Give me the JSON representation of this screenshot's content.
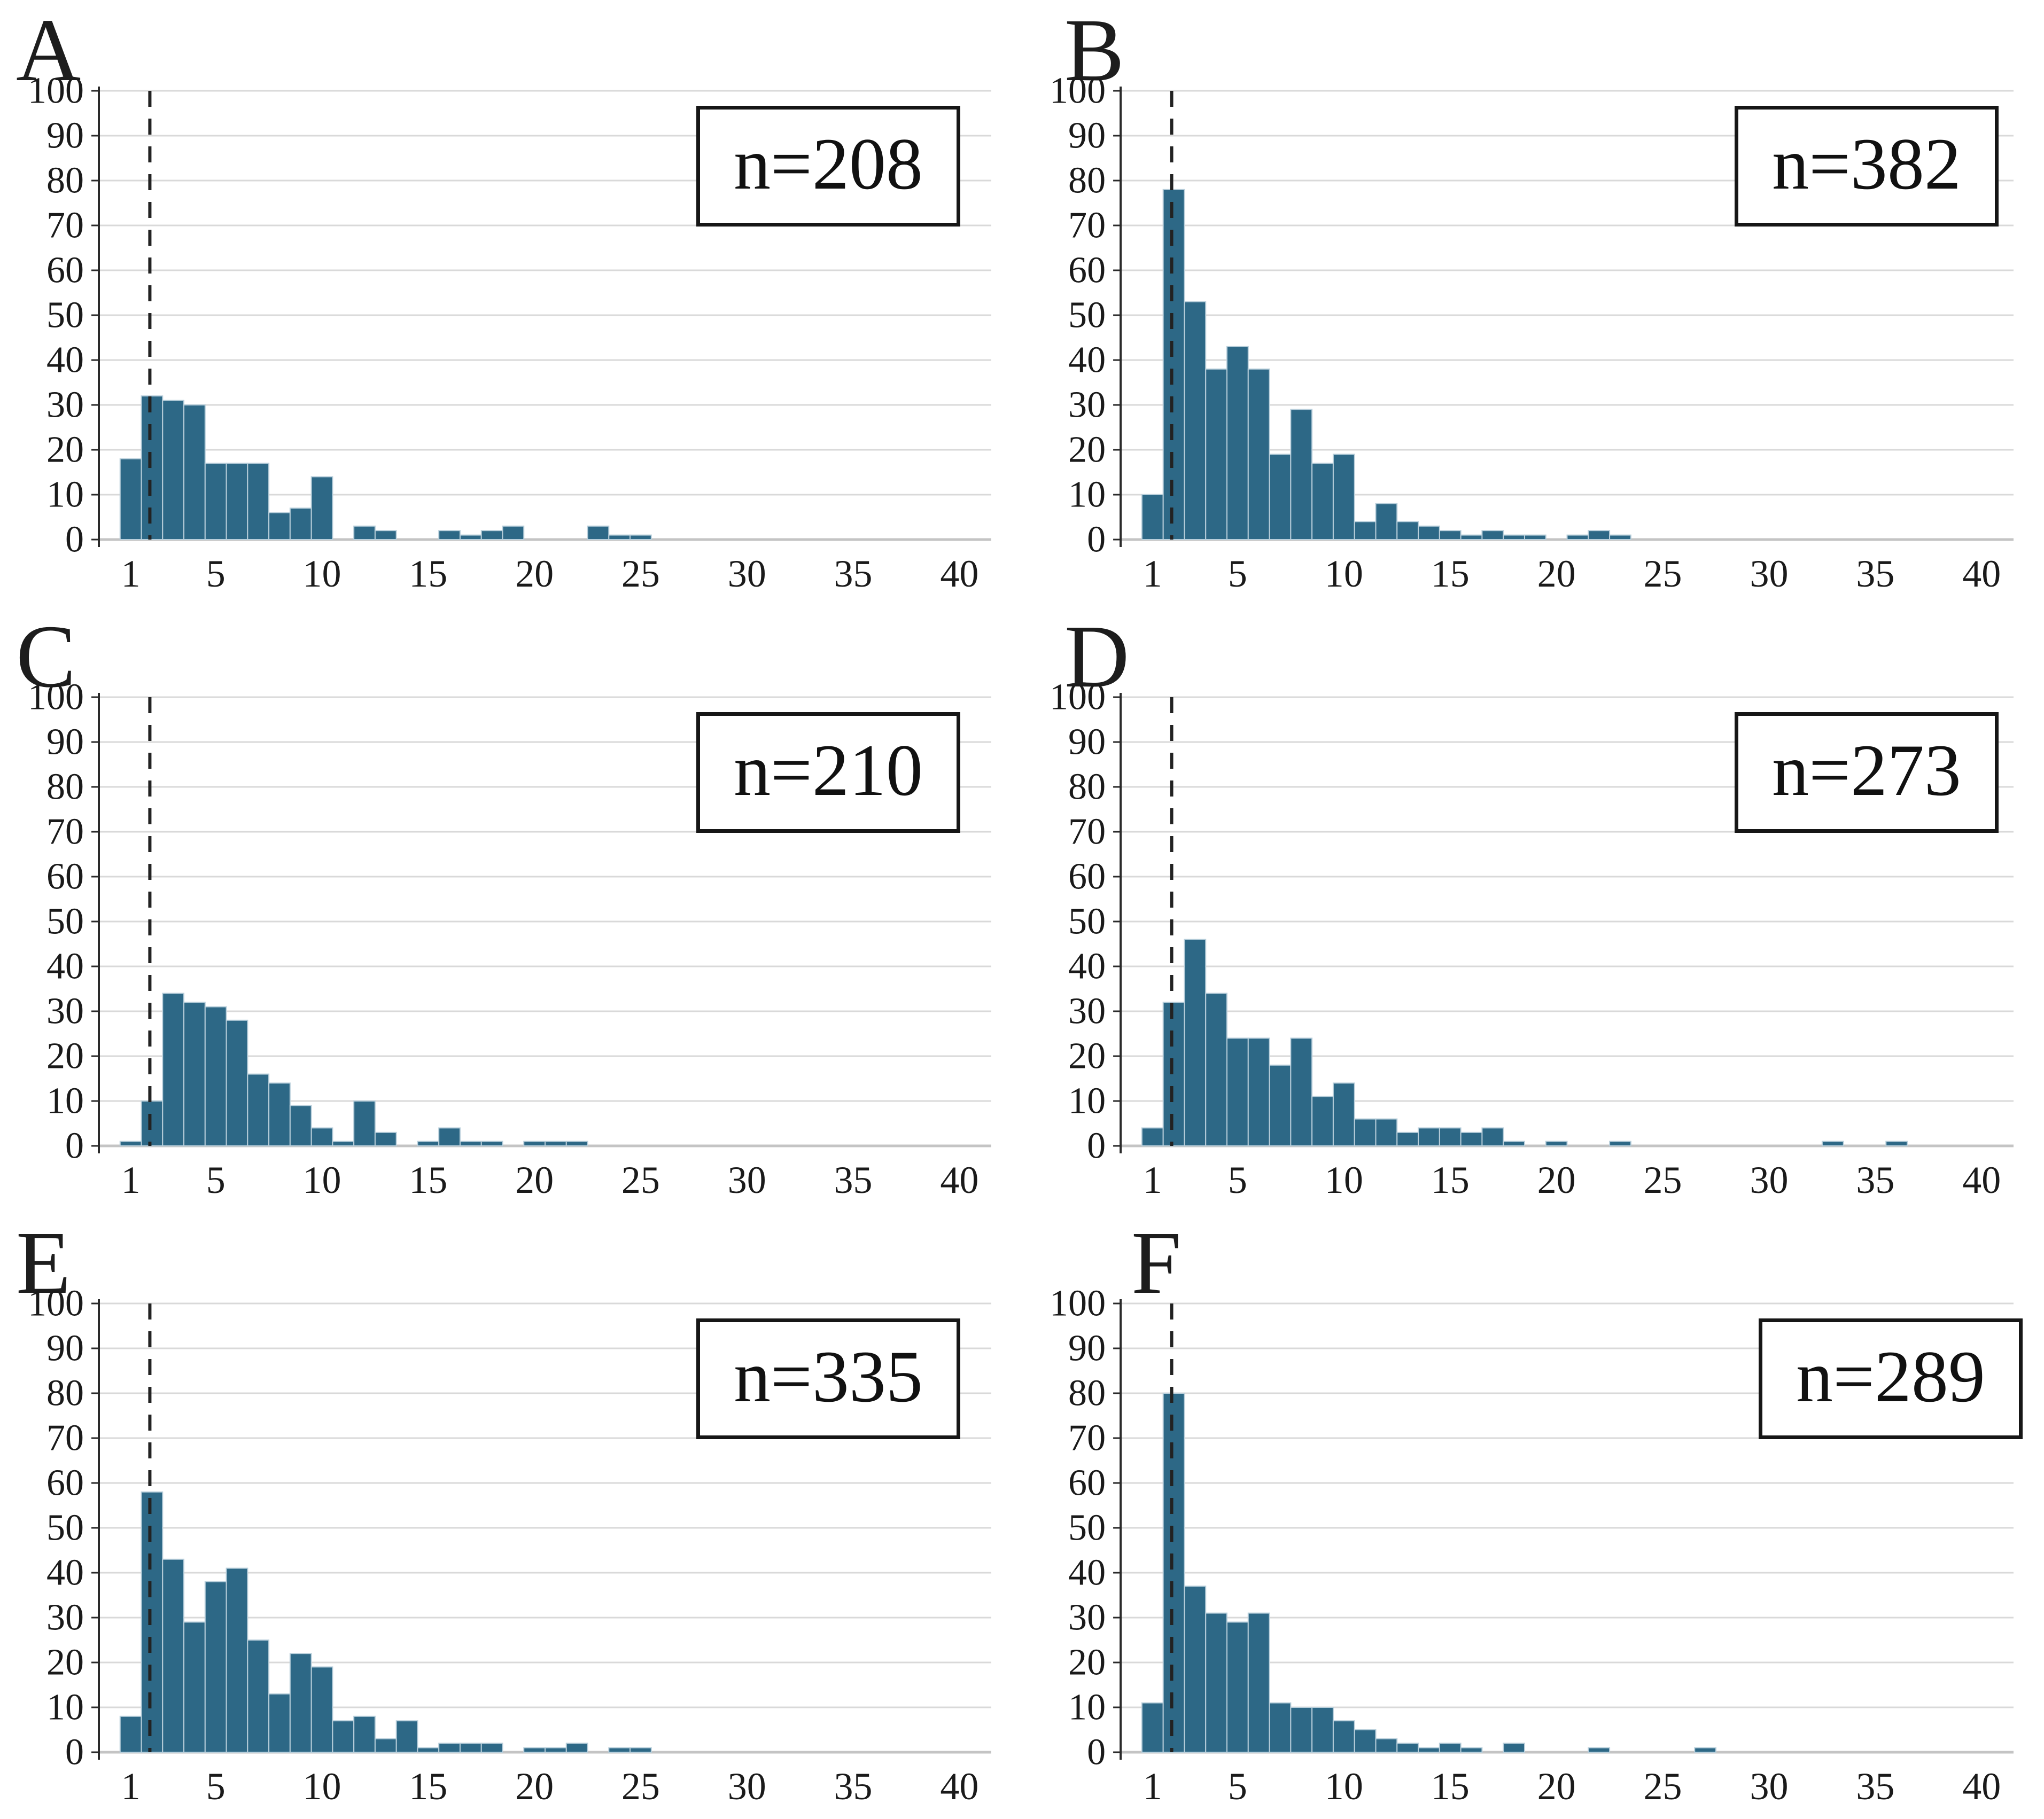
{
  "figure": {
    "background": "#ffffff",
    "x_ticks": [
      1,
      5,
      10,
      15,
      20,
      25,
      30,
      35,
      40
    ],
    "y_ticks": [
      0,
      10,
      20,
      30,
      40,
      50,
      60,
      70,
      80,
      90,
      100
    ]
  },
  "colors": {
    "bar_fill": "#2d6886",
    "bar_edge": "#b9cfdb",
    "grid": "#d9d9d9",
    "baseline": "#c4c4c4",
    "y_axis": "#2a2a2a",
    "dashed_line": "#222222",
    "text": "#1a1a1a",
    "box_border": "#161616"
  },
  "chart_data": [
    {
      "type": "bar",
      "panel": "A",
      "n_label": "n=208",
      "title": "",
      "xlabel": "",
      "ylabel": "",
      "xlim": [
        -0.5,
        41.5
      ],
      "ylim": [
        0,
        100
      ],
      "grid": true,
      "dashed_x": 1.9,
      "x": [
        1,
        2,
        3,
        4,
        5,
        6,
        7,
        8,
        9,
        10,
        12,
        13,
        16,
        17,
        18,
        19,
        23,
        24,
        25
      ],
      "values": [
        18,
        32,
        31,
        30,
        17,
        17,
        17,
        6,
        7,
        14,
        3,
        2,
        2,
        1,
        2,
        3,
        3,
        1,
        1
      ]
    },
    {
      "type": "bar",
      "panel": "B",
      "n_label": "n=382",
      "title": "",
      "xlabel": "",
      "ylabel": "",
      "xlim": [
        -0.5,
        41.5
      ],
      "ylim": [
        0,
        100
      ],
      "grid": true,
      "dashed_x": 1.9,
      "x": [
        1,
        2,
        3,
        4,
        5,
        6,
        7,
        8,
        9,
        10,
        11,
        12,
        13,
        14,
        15,
        16,
        17,
        18,
        19,
        21,
        22,
        23
      ],
      "values": [
        10,
        78,
        53,
        38,
        43,
        38,
        19,
        29,
        17,
        19,
        4,
        8,
        4,
        3,
        2,
        1,
        2,
        1,
        1,
        1,
        2,
        1
      ]
    },
    {
      "type": "bar",
      "panel": "C",
      "n_label": "n=210",
      "title": "",
      "xlabel": "",
      "ylabel": "",
      "xlim": [
        -0.5,
        41.5
      ],
      "ylim": [
        0,
        100
      ],
      "grid": true,
      "dashed_x": 1.9,
      "x": [
        1,
        2,
        3,
        4,
        5,
        6,
        7,
        8,
        9,
        10,
        11,
        12,
        13,
        15,
        16,
        17,
        18,
        20,
        21,
        22
      ],
      "values": [
        1,
        10,
        34,
        32,
        31,
        28,
        16,
        14,
        9,
        4,
        1,
        10,
        3,
        1,
        4,
        1,
        1,
        1,
        1,
        1
      ]
    },
    {
      "type": "bar",
      "panel": "D",
      "n_label": "n=273",
      "title": "",
      "xlabel": "",
      "ylabel": "",
      "xlim": [
        -0.5,
        41.5
      ],
      "ylim": [
        0,
        100
      ],
      "grid": true,
      "dashed_x": 1.9,
      "x": [
        1,
        2,
        3,
        4,
        5,
        6,
        7,
        8,
        9,
        10,
        11,
        12,
        13,
        14,
        15,
        16,
        17,
        18,
        20,
        23,
        33,
        36
      ],
      "values": [
        4,
        32,
        46,
        34,
        24,
        24,
        18,
        24,
        11,
        14,
        6,
        6,
        3,
        4,
        4,
        3,
        4,
        1,
        1,
        1,
        1,
        1
      ]
    },
    {
      "type": "bar",
      "panel": "E",
      "n_label": "n=335",
      "title": "",
      "xlabel": "",
      "ylabel": "",
      "xlim": [
        -0.5,
        41.5
      ],
      "ylim": [
        0,
        100
      ],
      "grid": true,
      "dashed_x": 1.9,
      "x": [
        1,
        2,
        3,
        4,
        5,
        6,
        7,
        8,
        9,
        10,
        11,
        12,
        13,
        14,
        15,
        16,
        17,
        18,
        20,
        21,
        22,
        24,
        25
      ],
      "values": [
        8,
        58,
        43,
        29,
        38,
        41,
        25,
        13,
        22,
        19,
        7,
        8,
        3,
        7,
        1,
        2,
        2,
        2,
        1,
        1,
        2,
        1,
        1
      ]
    },
    {
      "type": "bar",
      "panel": "F",
      "n_label": "n=289",
      "title": "",
      "xlabel": "",
      "ylabel": "",
      "xlim": [
        -0.5,
        41.5
      ],
      "ylim": [
        0,
        100
      ],
      "grid": true,
      "dashed_x": 1.9,
      "x": [
        1,
        2,
        3,
        4,
        5,
        6,
        7,
        8,
        9,
        10,
        11,
        12,
        13,
        14,
        15,
        16,
        18,
        22,
        27
      ],
      "values": [
        11,
        80,
        37,
        31,
        29,
        31,
        11,
        10,
        10,
        7,
        5,
        3,
        2,
        1,
        2,
        1,
        2,
        1,
        1
      ]
    }
  ]
}
